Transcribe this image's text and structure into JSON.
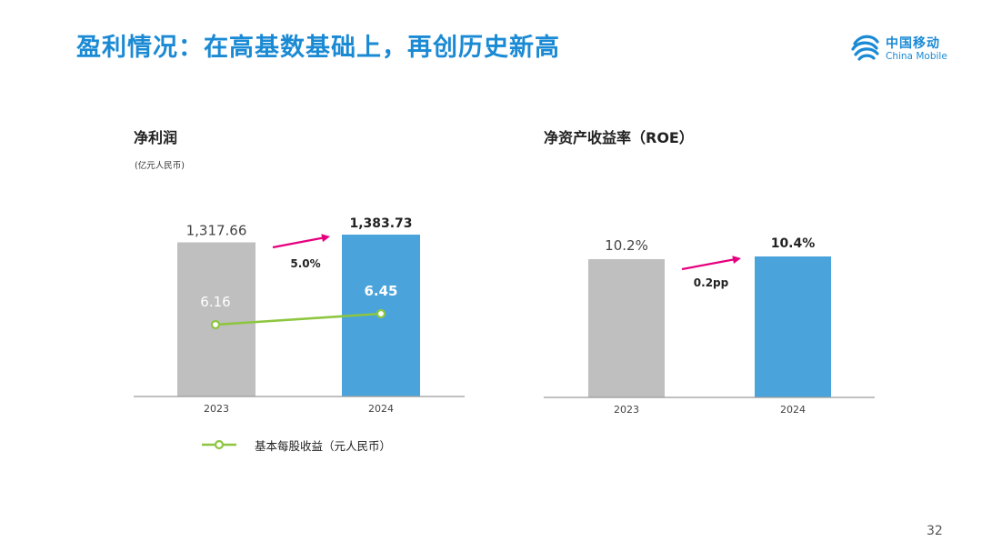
{
  "slide": {
    "title": "盈利情况：在高基数基础上，再创历史新高",
    "page_number": "32",
    "logo": {
      "cn": "中国移动",
      "en": "China Mobile"
    }
  },
  "colors": {
    "accent_blue": "#1a8ad4",
    "bar_2023": "#bfbfbf",
    "bar_2024": "#4aa3db",
    "eps_line": "#8dc63f",
    "arrow": "#e6007e"
  },
  "left_panel": {
    "title": "净利润",
    "unit": "(亿元人民币)",
    "legend_label": "基本每股收益（元人民币）"
  },
  "right_panel": {
    "title": "净资产收益率（ROE）"
  },
  "chart_data": [
    {
      "type": "bar",
      "title": "净利润",
      "unit": "(亿元人民币)",
      "categories": [
        "2023",
        "2024"
      ],
      "series": [
        {
          "values": [
            1317.66,
            1383.73
          ],
          "labels": [
            "1,317.66",
            "1,383.73"
          ]
        }
      ],
      "growth_annotation": "5.0%",
      "overlay": {
        "type": "line",
        "name": "基本每股收益（元人民币）",
        "values": [
          6.16,
          6.45
        ],
        "labels": [
          "6.16",
          "6.45"
        ]
      },
      "grid": false,
      "legend": "bottom"
    },
    {
      "type": "bar",
      "title": "净资产收益率（ROE）",
      "categories": [
        "2023",
        "2024"
      ],
      "series": [
        {
          "values": [
            10.2,
            10.4
          ],
          "labels": [
            "10.2%",
            "10.4%"
          ]
        }
      ],
      "growth_annotation": "0.2pp",
      "grid": false
    }
  ]
}
